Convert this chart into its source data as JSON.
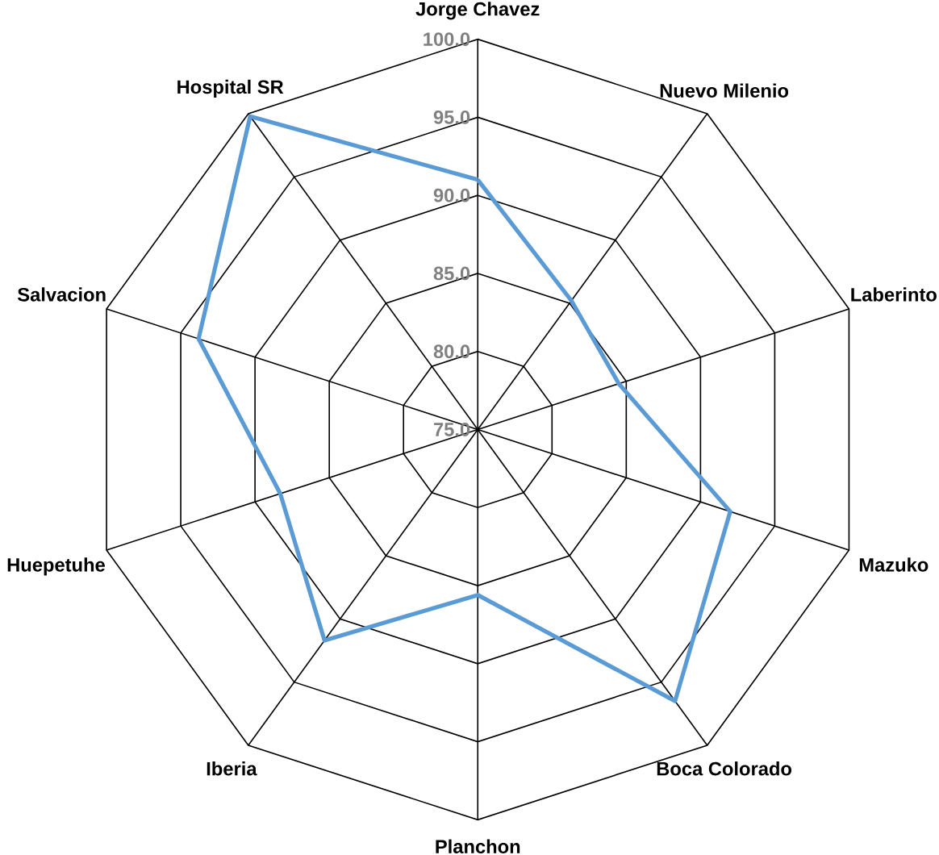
{
  "chart_data": {
    "type": "radar",
    "categories": [
      "Jorge Chavez",
      "Nuevo Milenio",
      "Laberinto",
      "Mazuko",
      "Boca Colorado",
      "Planchon",
      "Iberia",
      "Huepetuhe",
      "Salvacion",
      "Hospital SR"
    ],
    "series": [
      {
        "color": "#5b9bd5",
        "values": [
          91.0,
          85.2,
          84.5,
          92.0,
          96.5,
          85.6,
          91.7,
          88.3,
          93.8,
          99.8
        ]
      }
    ],
    "ylim": [
      75,
      100
    ],
    "yticks": [
      {
        "value": 75,
        "label": "75.0"
      },
      {
        "value": 80,
        "label": "80.0"
      },
      {
        "value": 85,
        "label": "85.0"
      },
      {
        "value": 90,
        "label": "90.0"
      },
      {
        "value": 95,
        "label": "95.0"
      },
      {
        "value": 100,
        "label": "100.0"
      }
    ],
    "grid": true
  }
}
